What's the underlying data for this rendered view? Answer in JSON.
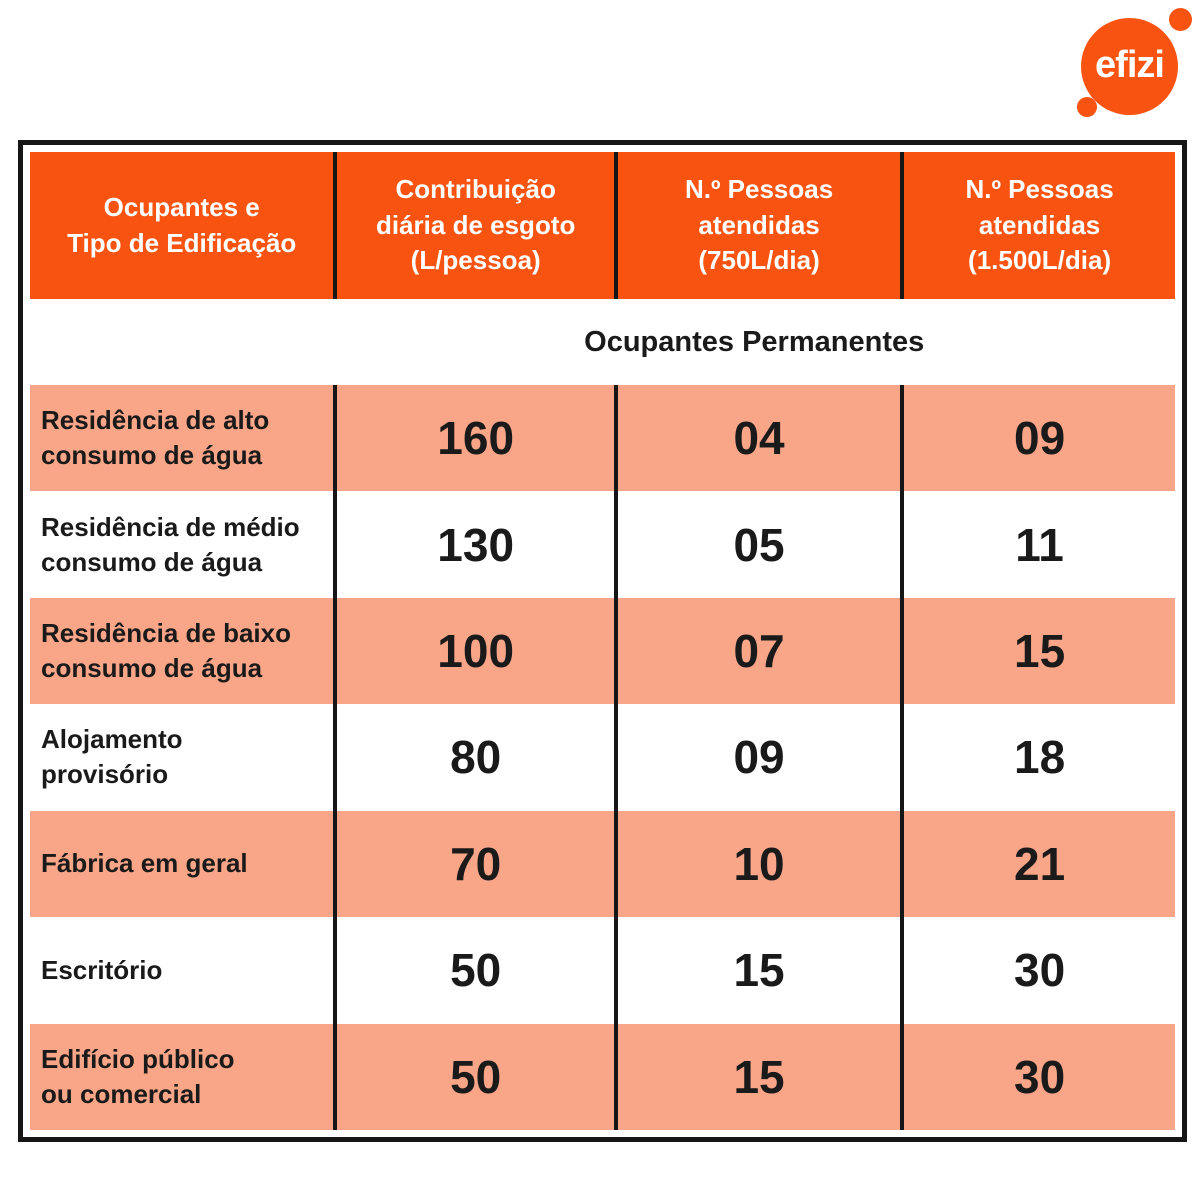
{
  "brand": {
    "logo_text": "efizi"
  },
  "colors": {
    "orange": "#F85310",
    "salmon": "#F9A588",
    "line": "#161616",
    "text": "#1A1A1A",
    "header_text": "#FFFFFF"
  },
  "table": {
    "headers": [
      "Ocupantes e\nTipo de Edificação",
      "Contribuição\ndiária de esgoto\n(L/pessoa)",
      "N.º Pessoas\natendidas\n(750L/dia)",
      "N.º Pessoas\natendidas\n(1.500L/dia)"
    ],
    "section_title": "Ocupantes Permanentes",
    "rows": [
      {
        "label": "Residência de alto\nconsumo de água",
        "values": [
          "160",
          "04",
          "09"
        ],
        "shaded": true
      },
      {
        "label": "Residência de médio\nconsumo de água",
        "values": [
          "130",
          "05",
          "11"
        ],
        "shaded": false
      },
      {
        "label": "Residência de baixo\nconsumo de água",
        "values": [
          "100",
          "07",
          "15"
        ],
        "shaded": true
      },
      {
        "label": "Alojamento\nprovisório",
        "values": [
          "80",
          "09",
          "18"
        ],
        "shaded": false
      },
      {
        "label": "Fábrica em geral",
        "values": [
          "70",
          "10",
          "21"
        ],
        "shaded": true
      },
      {
        "label": "Escritório",
        "values": [
          "50",
          "15",
          "30"
        ],
        "shaded": false
      },
      {
        "label": "Edifício público\nou comercial",
        "values": [
          "50",
          "15",
          "30"
        ],
        "shaded": true
      }
    ]
  },
  "chart_data": {
    "type": "table",
    "title": "Ocupantes Permanentes",
    "columns": [
      "Ocupantes e Tipo de Edificação",
      "Contribuição diária de esgoto (L/pessoa)",
      "N.º Pessoas atendidas (750L/dia)",
      "N.º Pessoas atendidas (1.500L/dia)"
    ],
    "rows": [
      [
        "Residência de alto consumo de água",
        160,
        4,
        9
      ],
      [
        "Residência de médio consumo de água",
        130,
        5,
        11
      ],
      [
        "Residência de baixo consumo de água",
        100,
        7,
        15
      ],
      [
        "Alojamento provisório",
        80,
        9,
        18
      ],
      [
        "Fábrica em geral",
        70,
        10,
        21
      ],
      [
        "Escritório",
        50,
        15,
        30
      ],
      [
        "Edifício público ou comercial",
        50,
        15,
        30
      ]
    ]
  }
}
